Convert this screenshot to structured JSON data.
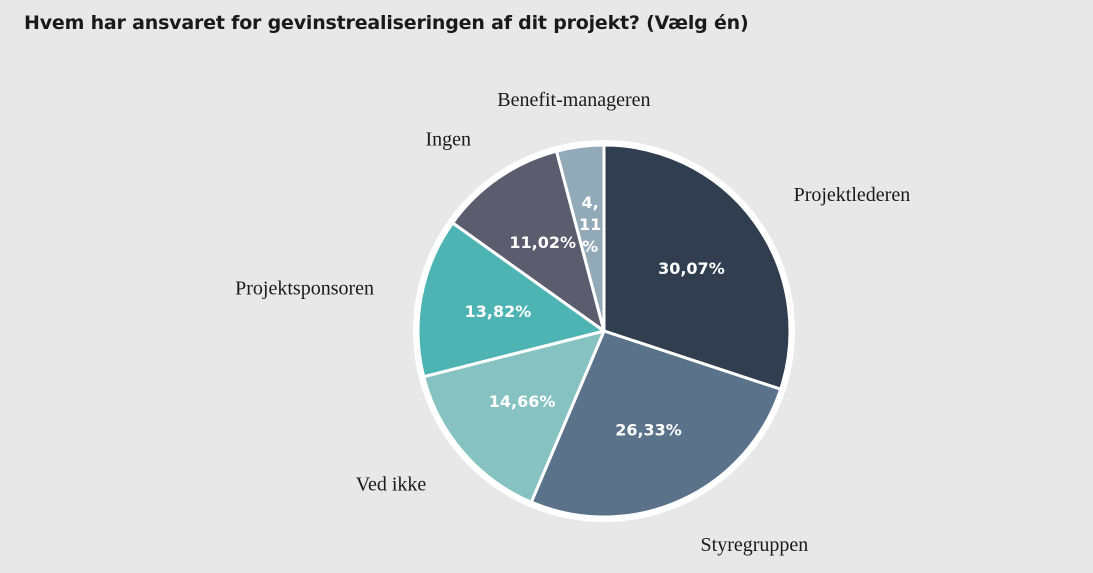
{
  "chart_data": {
    "type": "pie",
    "title": "Hvem har ansvaret for gevinstrealiseringen af dit projekt? (Vælg én)",
    "slices": [
      {
        "label": "Projektlederen",
        "value": 30.07,
        "display": "30,07%",
        "color": "#313e50"
      },
      {
        "label": "Styregruppen",
        "value": 26.33,
        "display": "26,33%",
        "color": "#5a728a"
      },
      {
        "label": "Ved ikke",
        "value": 14.66,
        "display": "14,66%",
        "color": "#87c2c2"
      },
      {
        "label": "Projektsponsoren",
        "value": 13.82,
        "display": "13,82%",
        "color": "#4eb3b3"
      },
      {
        "label": "Ingen",
        "value": 11.02,
        "display": "11,02%",
        "color": "#5b5d6e"
      },
      {
        "label": "Benefit-manageren",
        "value": 4.11,
        "display": "4,11%",
        "display_lines": [
          "4,",
          "11",
          "%"
        ],
        "color": "#92a9b8"
      }
    ],
    "legend": "none",
    "start_angle_deg": 0,
    "direction": "clockwise"
  }
}
